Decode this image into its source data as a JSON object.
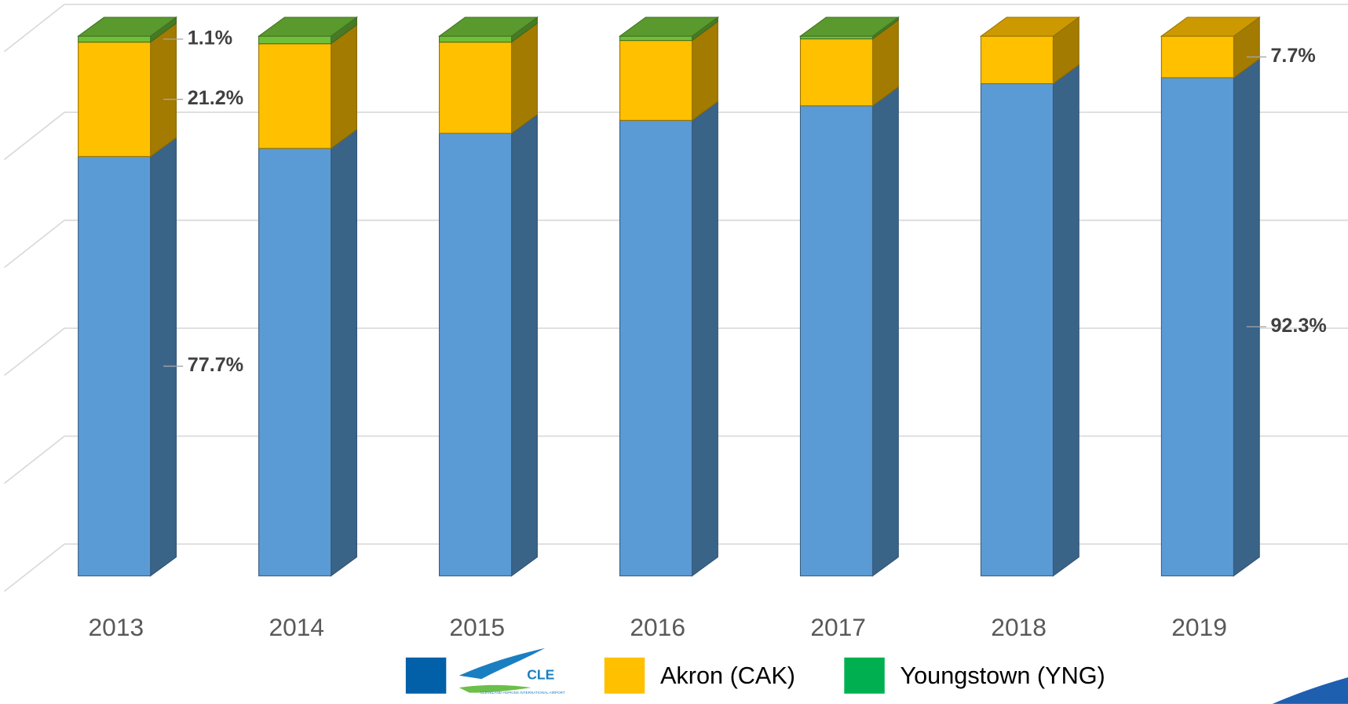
{
  "chart_data": {
    "type": "bar3d_stacked",
    "categories": [
      "2013",
      "2014",
      "2015",
      "2016",
      "2017",
      "2018",
      "2019"
    ],
    "series": [
      {
        "name": "CLE",
        "color": "#5b9bd5",
        "legend_color": "#0160a8",
        "values": [
          77.7,
          79.2,
          82.0,
          84.4,
          87.1,
          91.2,
          92.3
        ],
        "value_labels": [
          "77.7%",
          null,
          null,
          null,
          null,
          null,
          "92.3%"
        ]
      },
      {
        "name": "Akron (CAK)",
        "color": "#ffc000",
        "legend_color": "#ffc000",
        "values": [
          21.2,
          19.4,
          16.9,
          14.8,
          12.4,
          8.8,
          7.7
        ],
        "value_labels": [
          "21.2%",
          null,
          null,
          null,
          null,
          null,
          "7.7%"
        ]
      },
      {
        "name": "Youngstown (YNG)",
        "color": "#6fbf3a",
        "legend_color": "#00b050",
        "values": [
          1.1,
          1.4,
          1.1,
          0.8,
          0.5,
          0,
          0
        ],
        "value_labels": [
          "1.1%",
          null,
          null,
          null,
          null,
          null,
          null
        ]
      }
    ],
    "legend_logo_subtitle": "CLEVELAND HOPKINS INTERNATIONAL AIRPORT",
    "ylim": [
      0,
      100
    ],
    "yticks": [
      0,
      20,
      40,
      60,
      80,
      100
    ],
    "grid": true
  }
}
